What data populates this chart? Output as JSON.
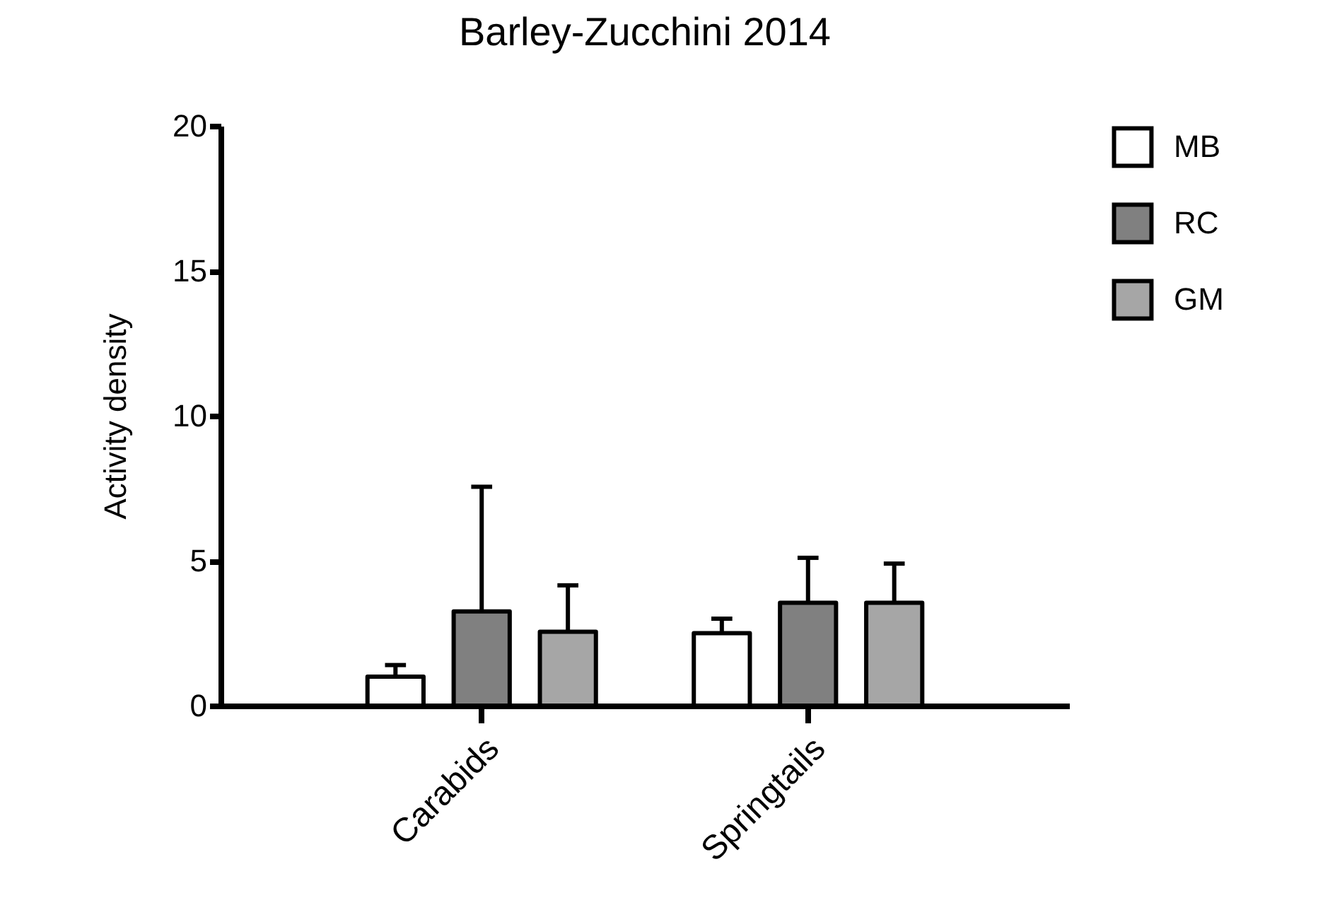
{
  "chart_data": {
    "type": "bar",
    "title": "Barley-Zucchini 2014",
    "ylabel": "Activity density",
    "categories": [
      "Carabids",
      "Springtails"
    ],
    "series": [
      {
        "name": "MB",
        "color": "#ffffff",
        "values": [
          1.0,
          2.5
        ],
        "errors": [
          [
            1.0,
            1.4
          ],
          [
            2.5,
            3.0
          ]
        ]
      },
      {
        "name": "RC",
        "color": "#808080",
        "values": [
          3.25,
          3.55
        ],
        "errors": [
          [
            3.25,
            7.55
          ],
          [
            3.55,
            5.1
          ]
        ]
      },
      {
        "name": "GM",
        "color": "#a6a6a6",
        "values": [
          2.55,
          3.55
        ],
        "errors": [
          [
            2.55,
            4.15
          ],
          [
            3.55,
            4.9
          ]
        ]
      }
    ],
    "ylim": [
      0,
      20
    ],
    "yticks": [
      0,
      5,
      10,
      15,
      20
    ],
    "grid": false,
    "legend": "top right"
  }
}
